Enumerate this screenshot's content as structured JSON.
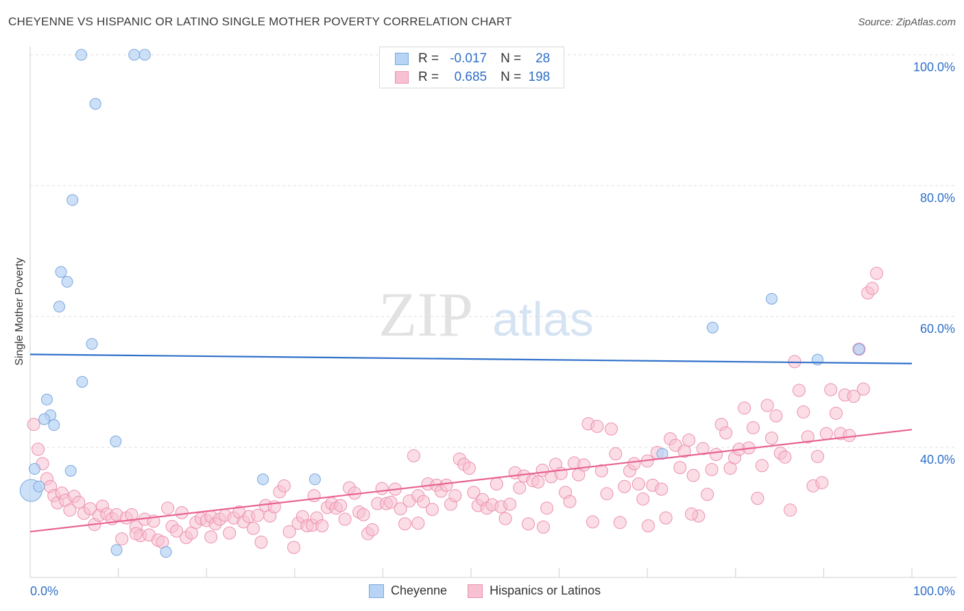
{
  "title": "CHEYENNE VS HISPANIC OR LATINO SINGLE MOTHER POVERTY CORRELATION CHART",
  "source": "Source: ZipAtlas.com",
  "watermark": {
    "zip": "ZIP",
    "atlas": "atlas"
  },
  "colors": {
    "cheyenne_fill": "#b7d3f5",
    "cheyenne_stroke": "#7aa6df",
    "cheyenne_line": "#2f6fc9",
    "hispanic_fill": "#f7c1d2",
    "hispanic_stroke": "#ec8fae",
    "hispanic_line": "#e8628f",
    "axis_value": "#2f6fc9",
    "grid": "#dddddd"
  },
  "legend": {
    "rows": [
      {
        "r_label": "R =",
        "r_value": "-0.017",
        "n_label": "N =",
        "n_value": "28"
      },
      {
        "r_label": "R =",
        "r_value": "0.685",
        "n_label": "N =",
        "n_value": "198"
      }
    ]
  },
  "bottom_legend": [
    "Cheyenne",
    "Hispanics or Latinos"
  ],
  "chart_data": {
    "type": "scatter",
    "title": "CHEYENNE VS HISPANIC OR LATINO SINGLE MOTHER POVERTY CORRELATION CHART",
    "xlabel": "",
    "ylabel": "Single Mother Poverty",
    "xlim": [
      0,
      100
    ],
    "ylim": [
      20,
      102
    ],
    "x_tick_labels": [
      "0.0%",
      "100.0%"
    ],
    "y_tick_labels": [
      "40.0%",
      "60.0%",
      "80.0%",
      "100.0%"
    ],
    "y_ticks": [
      40,
      60,
      80,
      100
    ],
    "grid": true,
    "legend_position": "top-center",
    "series": [
      {
        "name": "Cheyenne",
        "r": -0.017,
        "n": 28,
        "trend": {
          "x": [
            0,
            100
          ],
          "y": [
            54.2,
            52.8
          ]
        },
        "points": [
          [
            5.8,
            100.0
          ],
          [
            11.8,
            100.0
          ],
          [
            13.0,
            100.0
          ],
          [
            7.4,
            92.5
          ],
          [
            4.8,
            77.8
          ],
          [
            3.5,
            66.8
          ],
          [
            4.2,
            65.3
          ],
          [
            3.3,
            61.5
          ],
          [
            7.0,
            55.8
          ],
          [
            5.9,
            50.0
          ],
          [
            1.9,
            47.3
          ],
          [
            2.3,
            44.9
          ],
          [
            1.6,
            44.3
          ],
          [
            2.7,
            43.4
          ],
          [
            9.7,
            40.9
          ],
          [
            0.5,
            36.7
          ],
          [
            4.6,
            36.4
          ],
          [
            0.1,
            33.4
          ],
          [
            1.0,
            34.0
          ],
          [
            26.4,
            35.1
          ],
          [
            32.3,
            35.1
          ],
          [
            9.8,
            24.3
          ],
          [
            15.4,
            24.0
          ],
          [
            89.3,
            53.4
          ],
          [
            94.0,
            55.0
          ],
          [
            77.4,
            58.3
          ],
          [
            84.1,
            62.7
          ],
          [
            71.7,
            39.0
          ]
        ]
      },
      {
        "name": "Hispanics or Latinos",
        "r": 0.685,
        "n": 198,
        "trend": {
          "x": [
            0,
            100
          ],
          "y": [
            27.1,
            42.7
          ]
        },
        "points": [
          [
            0.4,
            43.5
          ],
          [
            0.9,
            39.7
          ],
          [
            1.4,
            37.5
          ],
          [
            1.9,
            35.2
          ],
          [
            2.3,
            34.0
          ],
          [
            2.7,
            32.6
          ],
          [
            3.1,
            31.5
          ],
          [
            3.6,
            33.0
          ],
          [
            4.0,
            31.9
          ],
          [
            4.5,
            30.4
          ],
          [
            5.0,
            32.5
          ],
          [
            5.5,
            31.6
          ],
          [
            6.1,
            29.9
          ],
          [
            6.8,
            30.6
          ],
          [
            7.3,
            28.2
          ],
          [
            7.8,
            29.6
          ],
          [
            8.2,
            31.0
          ],
          [
            8.7,
            29.8
          ],
          [
            9.3,
            29.1
          ],
          [
            9.8,
            29.7
          ],
          [
            10.4,
            26.0
          ],
          [
            10.9,
            29.2
          ],
          [
            11.5,
            29.7
          ],
          [
            12.0,
            27.8
          ],
          [
            12.5,
            26.5
          ],
          [
            13.0,
            29.0
          ],
          [
            13.5,
            26.6
          ],
          [
            14.0,
            28.7
          ],
          [
            14.5,
            25.8
          ],
          [
            15.0,
            25.5
          ],
          [
            15.6,
            30.7
          ],
          [
            16.1,
            27.9
          ],
          [
            16.6,
            27.2
          ],
          [
            17.2,
            30.0
          ],
          [
            17.7,
            26.2
          ],
          [
            18.3,
            26.9
          ],
          [
            18.8,
            28.5
          ],
          [
            19.4,
            29.1
          ],
          [
            20.0,
            28.8
          ],
          [
            20.5,
            29.4
          ],
          [
            21.0,
            28.3
          ],
          [
            21.5,
            29.0
          ],
          [
            22.1,
            29.6
          ],
          [
            22.6,
            26.9
          ],
          [
            23.1,
            29.2
          ],
          [
            23.7,
            30.1
          ],
          [
            24.2,
            28.6
          ],
          [
            24.8,
            29.4
          ],
          [
            25.3,
            27.6
          ],
          [
            25.8,
            29.6
          ],
          [
            26.2,
            25.5
          ],
          [
            26.7,
            31.1
          ],
          [
            27.2,
            29.5
          ],
          [
            27.7,
            30.9
          ],
          [
            28.3,
            33.2
          ],
          [
            28.8,
            34.1
          ],
          [
            29.4,
            27.1
          ],
          [
            29.9,
            24.7
          ],
          [
            30.4,
            28.4
          ],
          [
            30.9,
            29.4
          ],
          [
            31.4,
            28.0
          ],
          [
            32.0,
            28.1
          ],
          [
            32.5,
            29.2
          ],
          [
            33.1,
            28.0
          ],
          [
            33.7,
            30.8
          ],
          [
            34.2,
            31.4
          ],
          [
            34.7,
            30.7
          ],
          [
            35.2,
            31.1
          ],
          [
            35.7,
            29.0
          ],
          [
            36.2,
            33.8
          ],
          [
            36.8,
            33.0
          ],
          [
            37.3,
            30.1
          ],
          [
            37.8,
            29.7
          ],
          [
            38.3,
            26.8
          ],
          [
            38.8,
            27.4
          ],
          [
            39.4,
            31.4
          ],
          [
            39.9,
            33.7
          ],
          [
            40.4,
            31.4
          ],
          [
            40.9,
            31.6
          ],
          [
            41.4,
            33.6
          ],
          [
            42.0,
            30.6
          ],
          [
            42.5,
            28.3
          ],
          [
            43.0,
            31.8
          ],
          [
            43.5,
            38.7
          ],
          [
            44.0,
            32.6
          ],
          [
            44.6,
            31.7
          ],
          [
            45.1,
            34.4
          ],
          [
            45.6,
            30.5
          ],
          [
            46.1,
            34.2
          ],
          [
            46.6,
            33.3
          ],
          [
            47.2,
            34.2
          ],
          [
            47.7,
            31.3
          ],
          [
            48.2,
            32.6
          ],
          [
            48.7,
            38.2
          ],
          [
            49.2,
            37.4
          ],
          [
            49.8,
            36.8
          ],
          [
            50.3,
            33.1
          ],
          [
            50.8,
            31.1
          ],
          [
            51.3,
            32.0
          ],
          [
            51.8,
            30.7
          ],
          [
            52.4,
            31.2
          ],
          [
            52.9,
            34.4
          ],
          [
            53.4,
            30.9
          ],
          [
            53.9,
            29.1
          ],
          [
            54.4,
            31.3
          ],
          [
            55.0,
            36.1
          ],
          [
            55.5,
            33.8
          ],
          [
            56.0,
            35.6
          ],
          [
            56.5,
            28.3
          ],
          [
            57.0,
            34.9
          ],
          [
            57.6,
            34.7
          ],
          [
            58.1,
            36.5
          ],
          [
            58.6,
            30.7
          ],
          [
            59.1,
            35.5
          ],
          [
            59.6,
            37.4
          ],
          [
            60.2,
            36.0
          ],
          [
            60.7,
            33.1
          ],
          [
            61.2,
            31.7
          ],
          [
            61.7,
            37.6
          ],
          [
            62.2,
            35.8
          ],
          [
            62.8,
            37.3
          ],
          [
            63.3,
            43.6
          ],
          [
            63.8,
            28.6
          ],
          [
            64.3,
            43.2
          ],
          [
            64.8,
            36.4
          ],
          [
            65.4,
            32.9
          ],
          [
            65.9,
            42.8
          ],
          [
            66.4,
            39.0
          ],
          [
            66.9,
            28.5
          ],
          [
            67.4,
            34.0
          ],
          [
            68.0,
            36.4
          ],
          [
            68.5,
            37.5
          ],
          [
            69.0,
            34.4
          ],
          [
            69.5,
            32.1
          ],
          [
            70.0,
            37.9
          ],
          [
            70.6,
            34.2
          ],
          [
            71.1,
            39.2
          ],
          [
            71.6,
            33.6
          ],
          [
            72.1,
            29.2
          ],
          [
            72.6,
            41.3
          ],
          [
            73.2,
            40.3
          ],
          [
            73.7,
            36.9
          ],
          [
            74.2,
            39.4
          ],
          [
            74.7,
            41.1
          ],
          [
            75.2,
            35.7
          ],
          [
            75.8,
            29.5
          ],
          [
            76.3,
            39.8
          ],
          [
            76.8,
            32.8
          ],
          [
            77.3,
            36.6
          ],
          [
            77.8,
            38.9
          ],
          [
            78.4,
            43.5
          ],
          [
            78.9,
            42.2
          ],
          [
            79.4,
            36.8
          ],
          [
            79.9,
            38.4
          ],
          [
            80.4,
            39.7
          ],
          [
            81.0,
            46.0
          ],
          [
            81.5,
            39.9
          ],
          [
            82.0,
            43.0
          ],
          [
            82.5,
            32.2
          ],
          [
            83.0,
            37.2
          ],
          [
            83.6,
            46.4
          ],
          [
            84.1,
            41.4
          ],
          [
            84.6,
            44.8
          ],
          [
            85.1,
            39.1
          ],
          [
            85.6,
            38.5
          ],
          [
            86.2,
            30.4
          ],
          [
            86.7,
            53.1
          ],
          [
            87.2,
            48.7
          ],
          [
            87.7,
            45.4
          ],
          [
            88.2,
            41.6
          ],
          [
            88.8,
            34.1
          ],
          [
            89.3,
            38.6
          ],
          [
            89.8,
            34.6
          ],
          [
            90.3,
            42.1
          ],
          [
            90.8,
            48.8
          ],
          [
            91.4,
            45.2
          ],
          [
            91.9,
            42.1
          ],
          [
            92.4,
            48.0
          ],
          [
            92.9,
            41.8
          ],
          [
            93.4,
            47.8
          ],
          [
            94.0,
            55.0
          ],
          [
            94.5,
            48.9
          ],
          [
            95.0,
            63.6
          ],
          [
            95.5,
            64.3
          ],
          [
            96.0,
            66.6
          ],
          [
            32.2,
            32.6
          ],
          [
            12.0,
            26.8
          ],
          [
            20.5,
            26.3
          ],
          [
            44.0,
            28.4
          ],
          [
            58.2,
            27.8
          ],
          [
            70.1,
            28.0
          ],
          [
            75.0,
            29.8
          ]
        ]
      }
    ]
  }
}
